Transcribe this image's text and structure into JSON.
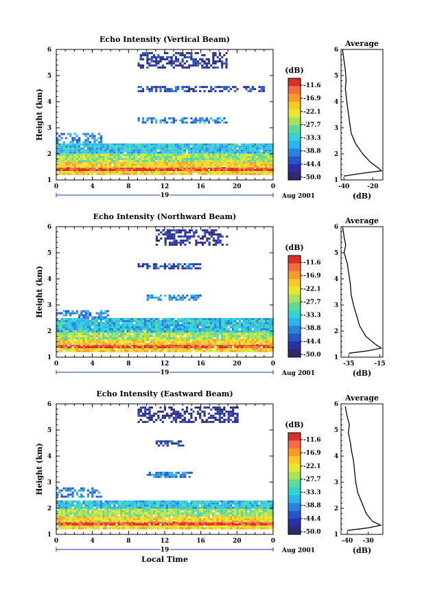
{
  "chart_data": [
    {
      "type": "heatmap",
      "title": "Echo Intensity (Vertical Beam)",
      "ylabel": "Height (km)",
      "xlabel": "",
      "xticks": [
        "0",
        "4",
        "8",
        "12",
        "16",
        "20",
        "0"
      ],
      "xlim": [
        0,
        24
      ],
      "ylim": [
        1,
        6
      ],
      "yticks": [
        "1",
        "2",
        "3",
        "4",
        "5",
        "6"
      ],
      "date_label": "19",
      "date_right": "Aug 2001",
      "colorbar": {
        "unit": "(dB)",
        "ticks": [
          "-11.6",
          "-16.9",
          "-22.1",
          "-27.7",
          "-33.3",
          "-38.8",
          "-44.4",
          "-50.0"
        ],
        "colors": [
          "#d73027",
          "#f46d43",
          "#fb9a29",
          "#fdc728",
          "#e6e930",
          "#a6e25a",
          "#5fd89a",
          "#33d5d2",
          "#2fb3ec",
          "#2a82e0",
          "#2856c9",
          "#2a2fa8",
          "#2b2b6b"
        ]
      },
      "layers": [
        {
          "height": [
            1.25,
            1.35
          ],
          "db": -22
        },
        {
          "height": [
            1.35,
            1.5
          ],
          "db": -13
        },
        {
          "height": [
            1.5,
            1.7
          ],
          "db": -22
        },
        {
          "height": [
            1.7,
            2.0
          ],
          "db": -28
        },
        {
          "height": [
            2.0,
            2.4
          ],
          "db": -36
        },
        {
          "height": [
            2.4,
            2.8
          ],
          "db": -40,
          "hours": [
            0,
            5
          ]
        },
        {
          "height": [
            3.2,
            3.4
          ],
          "db": -40,
          "hours": [
            9,
            19
          ]
        },
        {
          "height": [
            4.4,
            4.6
          ],
          "db": -45,
          "hours": [
            9,
            23
          ]
        },
        {
          "height": [
            5.3,
            5.9
          ],
          "db": -48,
          "hours": [
            9,
            19
          ]
        }
      ],
      "profile": {
        "title": "Average",
        "xlabel": "(dB)",
        "xticks": [
          "-40",
          "-20"
        ],
        "xlim": [
          -42,
          -13
        ],
        "points": [
          [
            -41,
            6.0
          ],
          [
            -40,
            5.6
          ],
          [
            -39,
            5.2
          ],
          [
            -38.5,
            4.8
          ],
          [
            -39,
            4.5
          ],
          [
            -38,
            4.0
          ],
          [
            -37,
            3.6
          ],
          [
            -36,
            3.2
          ],
          [
            -35,
            2.8
          ],
          [
            -32,
            2.4
          ],
          [
            -27,
            2.0
          ],
          [
            -22,
            1.7
          ],
          [
            -16,
            1.45
          ],
          [
            -14,
            1.35
          ],
          [
            -28,
            1.25
          ],
          [
            -40,
            1.15
          ]
        ]
      }
    },
    {
      "type": "heatmap",
      "title": "Echo Intensity (Northward Beam)",
      "ylabel": "Height (km)",
      "xlabel": "",
      "xticks": [
        "0",
        "4",
        "8",
        "12",
        "16",
        "20",
        "0"
      ],
      "xlim": [
        0,
        24
      ],
      "ylim": [
        1,
        6
      ],
      "yticks": [
        "1",
        "2",
        "3",
        "4",
        "5",
        "6"
      ],
      "date_label": "19",
      "date_right": "Aug 2001",
      "colorbar": {
        "unit": "(dB)",
        "ticks": [
          "-11.6",
          "-16.9",
          "-22.1",
          "-27.7",
          "-33.3",
          "-38.8",
          "-44.4",
          "-50.0"
        ],
        "colors": [
          "#d73027",
          "#f46d43",
          "#fb9a29",
          "#fdc728",
          "#e6e930",
          "#a6e25a",
          "#5fd89a",
          "#33d5d2",
          "#2fb3ec",
          "#2a82e0",
          "#2856c9",
          "#2a2fa8",
          "#2b2b6b"
        ]
      },
      "layers": [
        {
          "height": [
            1.25,
            1.35
          ],
          "db": -22
        },
        {
          "height": [
            1.35,
            1.5
          ],
          "db": -13
        },
        {
          "height": [
            1.5,
            1.7
          ],
          "db": -22
        },
        {
          "height": [
            1.7,
            2.0
          ],
          "db": -28
        },
        {
          "height": [
            2.0,
            2.5
          ],
          "db": -36
        },
        {
          "height": [
            2.5,
            2.8
          ],
          "db": -40,
          "hours": [
            0,
            6
          ]
        },
        {
          "height": [
            3.2,
            3.4
          ],
          "db": -40,
          "hours": [
            10,
            16
          ]
        },
        {
          "height": [
            4.4,
            4.6
          ],
          "db": -45,
          "hours": [
            9,
            16
          ]
        },
        {
          "height": [
            5.3,
            5.9
          ],
          "db": -48,
          "hours": [
            11,
            19
          ]
        }
      ],
      "profile": {
        "title": "Average",
        "xlabel": "(dB)",
        "xticks": [
          "-35",
          "-15"
        ],
        "xlim": [
          -40,
          -13
        ],
        "points": [
          [
            -39,
            6.0
          ],
          [
            -38,
            5.6
          ],
          [
            -37,
            5.3
          ],
          [
            -38,
            5.0
          ],
          [
            -36,
            4.6
          ],
          [
            -35,
            4.2
          ],
          [
            -34,
            3.8
          ],
          [
            -33.5,
            3.4
          ],
          [
            -32,
            3.0
          ],
          [
            -30,
            2.6
          ],
          [
            -28,
            2.2
          ],
          [
            -24,
            1.8
          ],
          [
            -18,
            1.5
          ],
          [
            -14,
            1.35
          ],
          [
            -22,
            1.25
          ],
          [
            -35,
            1.15
          ]
        ]
      }
    },
    {
      "type": "heatmap",
      "title": "Echo Intensity (Eastward Beam)",
      "ylabel": "Height (km)",
      "xlabel": "Local Time",
      "xticks": [
        "0",
        "4",
        "8",
        "12",
        "16",
        "20",
        "0"
      ],
      "xlim": [
        0,
        24
      ],
      "ylim": [
        1,
        6
      ],
      "yticks": [
        "1",
        "2",
        "3",
        "4",
        "5",
        "6"
      ],
      "date_label": "19",
      "date_right": "Aug 2001",
      "colorbar": {
        "unit": "(dB)",
        "ticks": [
          "-11.6",
          "-16.9",
          "-22.1",
          "-27.7",
          "-33.3",
          "-38.8",
          "-44.4",
          "-50.0"
        ],
        "colors": [
          "#d73027",
          "#f46d43",
          "#fb9a29",
          "#fdc728",
          "#e6e930",
          "#a6e25a",
          "#5fd89a",
          "#33d5d2",
          "#2fb3ec",
          "#2a82e0",
          "#2856c9",
          "#2a2fa8",
          "#2b2b6b"
        ]
      },
      "layers": [
        {
          "height": [
            1.25,
            1.35
          ],
          "db": -22
        },
        {
          "height": [
            1.35,
            1.5
          ],
          "db": -13
        },
        {
          "height": [
            1.5,
            1.7
          ],
          "db": -22
        },
        {
          "height": [
            1.7,
            2.0
          ],
          "db": -28
        },
        {
          "height": [
            2.0,
            2.3
          ],
          "db": -36
        },
        {
          "height": [
            2.4,
            2.8
          ],
          "db": -40,
          "hours": [
            0,
            5
          ]
        },
        {
          "height": [
            3.2,
            3.4
          ],
          "db": -40,
          "hours": [
            10,
            15
          ]
        },
        {
          "height": [
            4.4,
            4.6
          ],
          "db": -45,
          "hours": [
            11,
            14
          ]
        },
        {
          "height": [
            5.3,
            5.9
          ],
          "db": -48,
          "hours": [
            9,
            20
          ]
        }
      ],
      "profile": {
        "title": "Average",
        "xlabel": "(dB)",
        "xticks": [
          "-40",
          "-30"
        ],
        "xlim": [
          -43,
          -23
        ],
        "points": [
          [
            -41,
            5.9
          ],
          [
            -40,
            5.5
          ],
          [
            -39,
            5.2
          ],
          [
            -39.5,
            4.9
          ],
          [
            -38.5,
            4.5
          ],
          [
            -38,
            4.2
          ],
          [
            -37,
            3.8
          ],
          [
            -36.5,
            3.4
          ],
          [
            -36,
            3.0
          ],
          [
            -35,
            2.6
          ],
          [
            -33,
            2.2
          ],
          [
            -31,
            1.8
          ],
          [
            -28,
            1.5
          ],
          [
            -24,
            1.35
          ],
          [
            -30,
            1.25
          ],
          [
            -40,
            1.15
          ]
        ]
      }
    }
  ]
}
